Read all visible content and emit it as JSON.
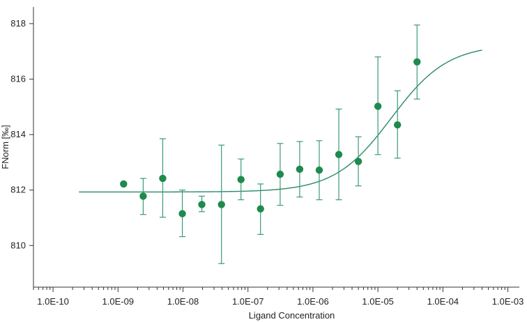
{
  "chart_data": {
    "type": "scatter",
    "title": "",
    "xlabel": "Ligand Concentration",
    "ylabel": "FNorm [‰]",
    "x_scale": "log",
    "xlim": [
      5e-11,
      0.0015
    ],
    "ylim": [
      808.5,
      818.6
    ],
    "grid": false,
    "legend": "none",
    "x_ticks": [
      1e-10,
      1e-09,
      1e-08,
      1e-07,
      1e-06,
      1e-05,
      0.0001,
      0.001
    ],
    "x_tick_labels": [
      "1.0E-10",
      "1.0E-09",
      "1.0E-08",
      "1.0E-07",
      "1.0E-06",
      "1.0E-05",
      "1.0E-04",
      "1.0E-03"
    ],
    "y_ticks": [
      810,
      812,
      814,
      816,
      818
    ],
    "y_tick_labels": [
      "810",
      "812",
      "814",
      "816",
      "818"
    ],
    "colors": {
      "points": "#1e8a4e",
      "curve": "#2a8a66",
      "error_bars": "#3a9a76",
      "axis": "#333333"
    },
    "series": [
      {
        "type": "points_with_error_bars",
        "x": [
          1.22e-09,
          2.44e-09,
          4.88e-09,
          9.77e-09,
          1.95e-08,
          3.91e-08,
          7.81e-08,
          1.56e-07,
          3.13e-07,
          6.25e-07,
          1.25e-06,
          2.5e-06,
          5e-06,
          1e-05,
          2e-05,
          4e-05
        ],
        "y": [
          812.22,
          811.78,
          812.42,
          811.15,
          811.48,
          811.48,
          812.38,
          811.32,
          812.57,
          812.75,
          812.72,
          813.28,
          813.03,
          815.02,
          814.35,
          816.62
        ],
        "y_low": [
          null,
          811.12,
          811.02,
          810.32,
          811.22,
          809.35,
          811.65,
          810.4,
          811.45,
          811.75,
          811.65,
          811.65,
          812.15,
          813.28,
          813.15,
          815.28
        ],
        "y_high": [
          null,
          812.42,
          813.85,
          812.0,
          811.78,
          813.62,
          813.12,
          812.22,
          813.68,
          813.75,
          813.78,
          814.92,
          813.92,
          816.8,
          815.58,
          817.95
        ]
      },
      {
        "type": "fit_curve",
        "model": "sigmoidal",
        "x_range": [
          2.5e-10,
          0.0004
        ],
        "bottom": 811.93,
        "top": 817.25,
        "ec50": 1.6e-05,
        "hill": 1.0
      }
    ]
  }
}
